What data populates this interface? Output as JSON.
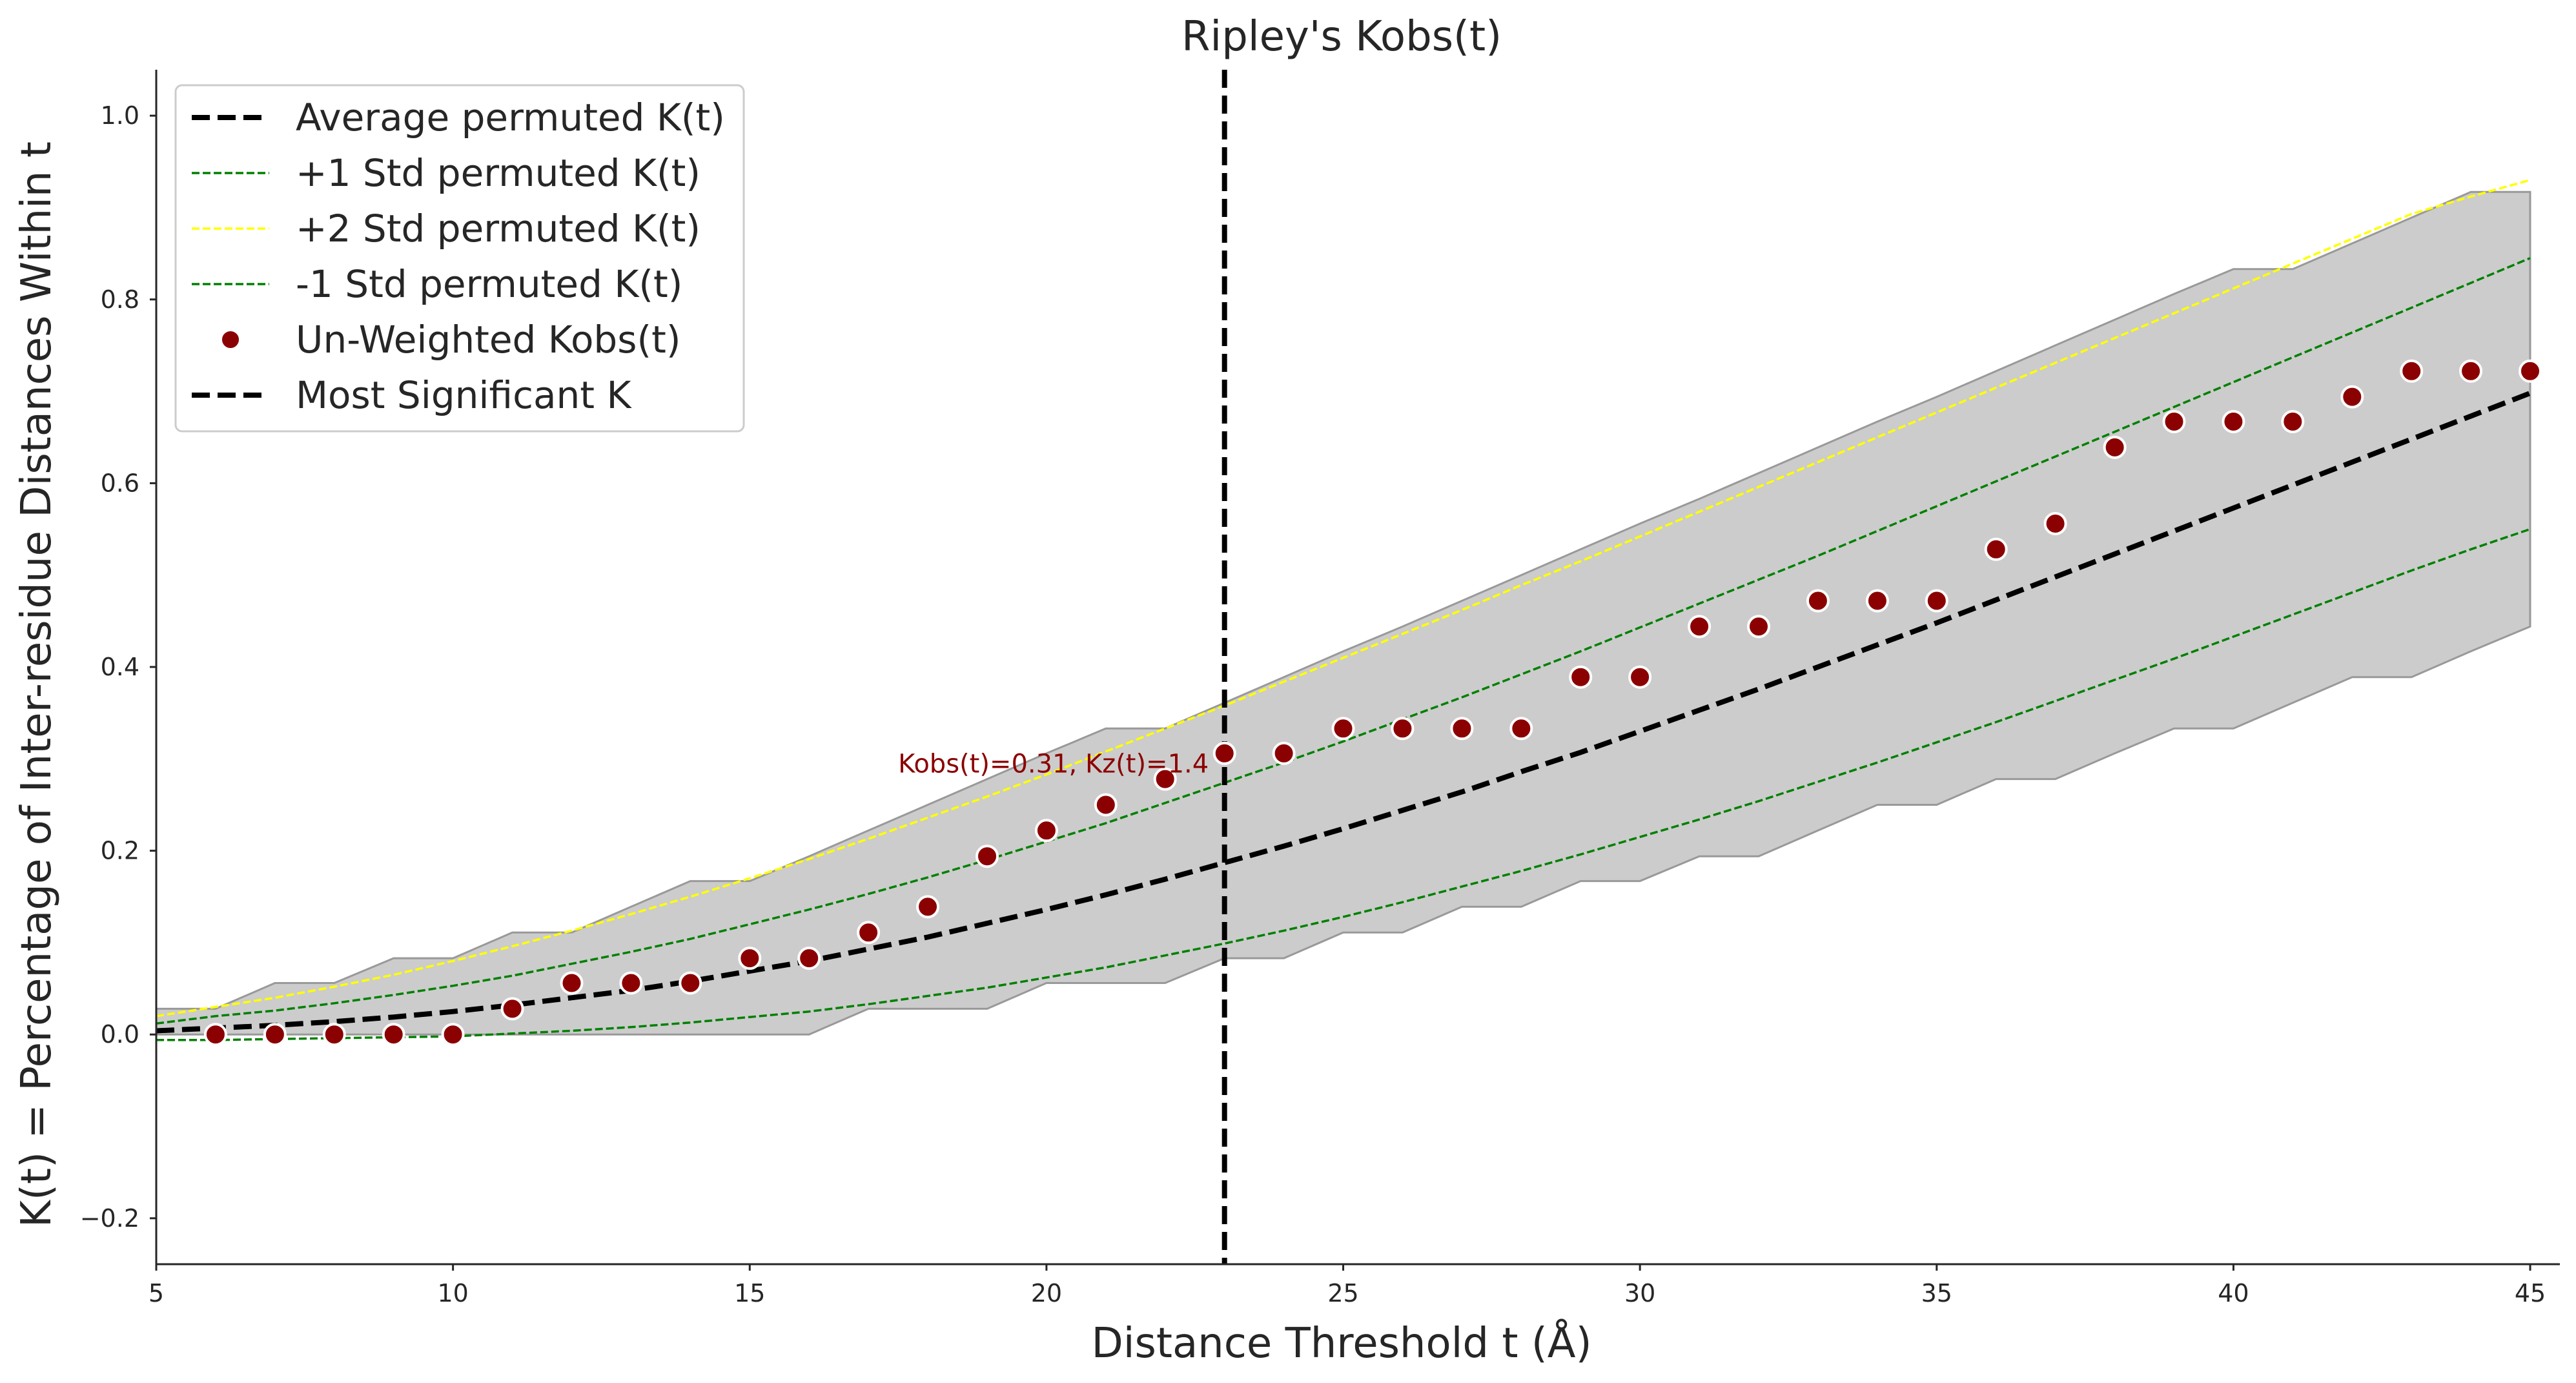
{
  "chart_data": {
    "type": "scatter",
    "title": "Ripley's Kobs(t)",
    "xlabel": "Distance Threshold t (Å)",
    "ylabel": "K(t) = Percentage of Inter-residue Distances Within t",
    "xlim": [
      5,
      45.5
    ],
    "ylim": [
      -0.25,
      1.05
    ],
    "xticks": [
      5,
      10,
      15,
      20,
      25,
      30,
      35,
      40,
      45
    ],
    "yticks": [
      -0.2,
      0.0,
      0.2,
      0.4,
      0.6,
      0.8,
      1.0
    ],
    "ytick_labels": [
      "−0.2",
      "0.0",
      "0.2",
      "0.4",
      "0.6",
      "0.8",
      "1.0"
    ],
    "grid": false,
    "legend_position": "top-left",
    "colors": {
      "average": "#000000",
      "std1": "#008000",
      "std2": "#ffff00",
      "observed": "#8b0000",
      "band_fill": "#cccccc",
      "band_edge": "#999999",
      "most_significant": "#000000"
    },
    "x": [
      5,
      6,
      7,
      8,
      9,
      10,
      11,
      12,
      13,
      14,
      15,
      16,
      17,
      18,
      19,
      20,
      21,
      22,
      23,
      24,
      25,
      26,
      27,
      28,
      29,
      30,
      31,
      32,
      33,
      34,
      35,
      36,
      37,
      38,
      39,
      40,
      41,
      42,
      43,
      44,
      45
    ],
    "series": [
      {
        "name": "Average permuted K(t)",
        "kind": "line",
        "style": "dashed-thick",
        "values": [
          0.004,
          0.007,
          0.01,
          0.014,
          0.019,
          0.025,
          0.032,
          0.04,
          0.048,
          0.058,
          0.069,
          0.08,
          0.093,
          0.106,
          0.121,
          0.136,
          0.152,
          0.169,
          0.187,
          0.205,
          0.224,
          0.244,
          0.264,
          0.286,
          0.307,
          0.33,
          0.353,
          0.376,
          0.4,
          0.424,
          0.448,
          0.473,
          0.498,
          0.523,
          0.548,
          0.573,
          0.598,
          0.623,
          0.648,
          0.673,
          0.698
        ]
      },
      {
        "name": "+1 Std permuted K(t)",
        "kind": "line",
        "style": "dashed-thin",
        "values": [
          0.012,
          0.02,
          0.026,
          0.034,
          0.043,
          0.053,
          0.064,
          0.077,
          0.09,
          0.104,
          0.12,
          0.136,
          0.153,
          0.171,
          0.19,
          0.21,
          0.23,
          0.252,
          0.274,
          0.296,
          0.319,
          0.343,
          0.367,
          0.392,
          0.417,
          0.443,
          0.469,
          0.495,
          0.521,
          0.548,
          0.575,
          0.602,
          0.629,
          0.656,
          0.683,
          0.71,
          0.737,
          0.764,
          0.791,
          0.818,
          0.845
        ]
      },
      {
        "name": "+2 Std permuted K(t)",
        "kind": "line",
        "style": "dashed-thin",
        "values": [
          0.02,
          0.03,
          0.04,
          0.052,
          0.065,
          0.08,
          0.096,
          0.113,
          0.131,
          0.15,
          0.17,
          0.191,
          0.213,
          0.236,
          0.259,
          0.283,
          0.308,
          0.333,
          0.358,
          0.384,
          0.41,
          0.436,
          0.462,
          0.489,
          0.515,
          0.542,
          0.569,
          0.596,
          0.623,
          0.65,
          0.677,
          0.704,
          0.731,
          0.758,
          0.785,
          0.812,
          0.839,
          0.866,
          0.893,
          0.912,
          0.93
        ]
      },
      {
        "name": "-1 Std permuted K(t)",
        "kind": "line",
        "style": "dashed-thin",
        "values": [
          -0.006,
          -0.006,
          -0.005,
          -0.004,
          -0.003,
          -0.002,
          0.001,
          0.004,
          0.008,
          0.013,
          0.019,
          0.025,
          0.033,
          0.042,
          0.051,
          0.062,
          0.073,
          0.086,
          0.099,
          0.113,
          0.128,
          0.144,
          0.161,
          0.178,
          0.196,
          0.215,
          0.234,
          0.254,
          0.275,
          0.296,
          0.318,
          0.34,
          0.363,
          0.386,
          0.409,
          0.433,
          0.457,
          0.481,
          0.505,
          0.528,
          0.55
        ]
      },
      {
        "name": "Un-Weighted Kobs(t)",
        "kind": "scatter",
        "values": [
          null,
          0.0,
          0.0,
          0.0,
          0.0,
          0.0,
          0.028,
          0.056,
          0.056,
          0.056,
          0.083,
          0.083,
          0.111,
          0.139,
          0.194,
          0.222,
          0.25,
          0.278,
          0.306,
          0.306,
          0.333,
          0.333,
          0.333,
          0.333,
          0.389,
          0.389,
          0.444,
          0.444,
          0.472,
          0.472,
          0.472,
          0.528,
          0.556,
          0.639,
          0.667,
          0.667,
          0.667,
          0.694,
          0.722,
          0.722,
          0.722
        ]
      }
    ],
    "band": {
      "upper": [
        0.028,
        0.028,
        0.056,
        0.056,
        0.083,
        0.083,
        0.111,
        0.111,
        0.139,
        0.167,
        0.167,
        0.194,
        0.222,
        0.25,
        0.278,
        0.306,
        0.333,
        0.333,
        0.361,
        0.389,
        0.417,
        0.444,
        0.472,
        0.5,
        0.528,
        0.556,
        0.583,
        0.611,
        0.639,
        0.667,
        0.694,
        0.722,
        0.75,
        0.778,
        0.806,
        0.833,
        0.833,
        0.861,
        0.889,
        0.917,
        0.917
      ],
      "lower": [
        0.0,
        0.0,
        0.0,
        0.0,
        0.0,
        0.0,
        0.0,
        0.0,
        0.0,
        0.0,
        0.0,
        0.0,
        0.028,
        0.028,
        0.028,
        0.056,
        0.056,
        0.056,
        0.083,
        0.083,
        0.111,
        0.111,
        0.139,
        0.139,
        0.167,
        0.167,
        0.194,
        0.194,
        0.222,
        0.25,
        0.25,
        0.278,
        0.278,
        0.306,
        0.333,
        0.333,
        0.361,
        0.389,
        0.389,
        0.417,
        0.444
      ]
    },
    "most_significant": {
      "name": "Most Significant K",
      "x": 23,
      "annotation": "Kobs(t)=0.31, Kz(t)=1.4",
      "annotation_x": 17.5,
      "annotation_y": 0.285
    }
  }
}
